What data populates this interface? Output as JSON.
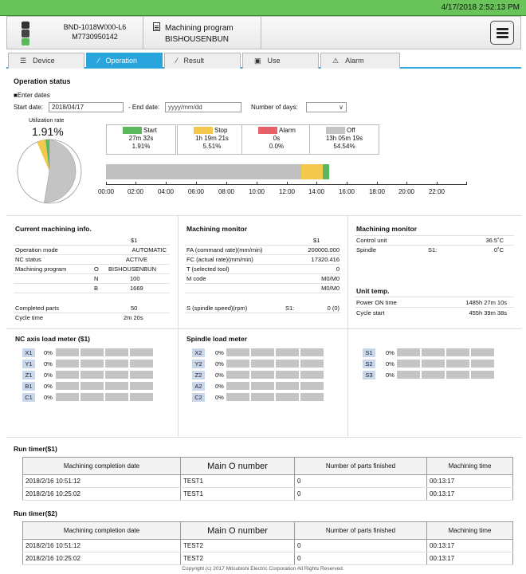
{
  "status_bar": {
    "datetime": "4/17/2018 2:52:13 PM"
  },
  "header": {
    "machine_name": "BND-1018W000-L6",
    "machine_serial": "M7730950142",
    "program_label": "Machining program",
    "program_name": "BISHOUSENBUN",
    "menu_icon": "hamburger-menu-icon"
  },
  "tabs": [
    {
      "label": "Device",
      "icon": "list-icon"
    },
    {
      "label": "Operation",
      "icon": "lightning-icon",
      "active": true
    },
    {
      "label": "Result",
      "icon": "lightning-icon"
    },
    {
      "label": "Use",
      "icon": "disk-icon"
    },
    {
      "label": "Alarm",
      "icon": "warning-icon"
    }
  ],
  "operation_status": {
    "title": "Operation status",
    "enter_dates": "■Enter dates",
    "start_date_label": "Start date:",
    "start_date_value": "2018/04/17",
    "end_date_label": "- End date:",
    "end_date_placeholder": "yyyy/mm/dd",
    "days_label": "Number of days:",
    "utilization_label": "Utilization rate",
    "utilization_value": "1.91%",
    "states": [
      {
        "name": "Start",
        "time": "27m 32s",
        "percent": "1.91%",
        "color": "#5cb85c"
      },
      {
        "name": "Stop",
        "time": "1h 19m 21s",
        "percent": "5.51%",
        "color": "#f2c94c"
      },
      {
        "name": "Alarm",
        "time": "0s",
        "percent": "0.0%",
        "color": "#e8606a"
      },
      {
        "name": "Off",
        "time": "13h 05m 19s",
        "percent": "54.54%",
        "color": "#c4c4c4"
      }
    ],
    "timeline_labels": [
      "00:00",
      "02:00",
      "04:00",
      "06:00",
      "08:00",
      "10:00",
      "12:00",
      "14:00",
      "16:00",
      "18:00",
      "20:00",
      "22:00"
    ]
  },
  "current_info": {
    "title": "Current machining info.",
    "col_header": "$1",
    "rows": [
      {
        "label": "Operation mode",
        "sub": "",
        "value": "AUTOMATIC"
      },
      {
        "label": "NC status",
        "sub": "",
        "value": "ACTIVE"
      },
      {
        "label": "Machining program",
        "sub": "O",
        "value": "BISHOUSENBUN"
      },
      {
        "label": "",
        "sub": "N",
        "value": "100"
      },
      {
        "label": "",
        "sub": "B",
        "value": "1669"
      }
    ],
    "completed_label": "Completed parts",
    "completed_value": "50",
    "cycle_label": "Cycle time",
    "cycle_value": "2m 20s"
  },
  "monitor1": {
    "title": "Machining monitor",
    "col_header": "$1",
    "rows": [
      {
        "label": "FA (command rate)(mm/min)",
        "value": "200000.000"
      },
      {
        "label": "FC (actual rate)(mm/min)",
        "value": "17320.416"
      },
      {
        "label": "T (selected tool)",
        "value": "0"
      },
      {
        "label": "M code",
        "value": "M0/M0"
      },
      {
        "label": "",
        "value": "M0/M0"
      }
    ],
    "spindle_label": "S (spindle speed)(rpm)",
    "spindle_sub": "S1:",
    "spindle_value": "0 (0)"
  },
  "monitor2": {
    "title": "Machining monitor",
    "control_label": "Control unit",
    "control_value": "36.5˚C",
    "spindle_label": "Spindle",
    "spindle_sub": "S1:",
    "spindle_value": "0˚C",
    "unit_temp_title": "Unit temp.",
    "power_on_label": "Power ON time",
    "power_on_value": "1485h 27m 10s",
    "cycle_start_label": "Cycle start",
    "cycle_start_value": "455h 39m 38s"
  },
  "nc_axis_meter": {
    "title": "NC axis load meter ($1)",
    "axes": [
      {
        "name": "X1",
        "percent": "0%"
      },
      {
        "name": "Y1",
        "percent": "0%"
      },
      {
        "name": "Z1",
        "percent": "0%"
      },
      {
        "name": "B1",
        "percent": "0%"
      },
      {
        "name": "C1",
        "percent": "0%"
      }
    ]
  },
  "spindle_meter": {
    "title": "Spindle load meter",
    "axes": [
      {
        "name": "X2",
        "percent": "0%"
      },
      {
        "name": "Y2",
        "percent": "0%"
      },
      {
        "name": "Z2",
        "percent": "0%"
      },
      {
        "name": "A2",
        "percent": "0%"
      },
      {
        "name": "C2",
        "percent": "0%"
      }
    ]
  },
  "spindle_meter2": {
    "axes": [
      {
        "name": "S1",
        "percent": "0%"
      },
      {
        "name": "S2",
        "percent": "0%"
      },
      {
        "name": "S3",
        "percent": "0%"
      }
    ]
  },
  "run_timer1": {
    "title": "Run timer($1)",
    "headers": [
      "Machining completion date",
      "Main O number",
      "Number of parts finished",
      "Machining time"
    ],
    "rows": [
      [
        "2018/2/16 10:51:12",
        "TEST1",
        "0",
        "00:13:17"
      ],
      [
        "2018/2/16 10:25:02",
        "TEST1",
        "0",
        "00:13:17"
      ]
    ]
  },
  "run_timer2": {
    "title": "Run timer($2)",
    "headers": [
      "Machining completion date",
      "Main O number",
      "Number of parts finished",
      "Machining time"
    ],
    "rows": [
      [
        "2018/2/16 10:51:12",
        "TEST2",
        "0",
        "00:13:17"
      ],
      [
        "2018/2/16 10:25:02",
        "TEST2",
        "0",
        "00:13:17"
      ]
    ]
  },
  "footer": "Copyright (c) 2017 Mitsubishi Electric Corporation All Rights Reserved."
}
